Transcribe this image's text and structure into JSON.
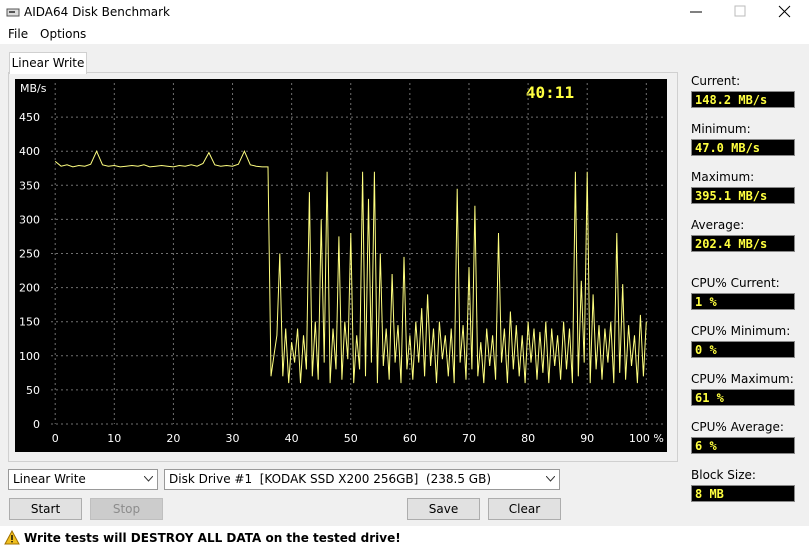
{
  "window": {
    "title": "AIDA64 Disk Benchmark"
  },
  "menu": [
    "File",
    "Options"
  ],
  "tab": "Linear Write",
  "chart": {
    "type": "line",
    "y_label": "MB/s",
    "timer": "40:11",
    "color": "#ffff80",
    "grid": true,
    "xlim": [
      -6.8,
      103.5
    ],
    "ylim": [
      0,
      500
    ],
    "xticks": [
      0,
      10,
      20,
      30,
      40,
      50,
      60,
      70,
      80,
      90,
      {
        "value": 100,
        "label": "100 %"
      }
    ],
    "yticks": [
      0,
      50,
      100,
      150,
      200,
      250,
      300,
      350,
      400,
      450
    ],
    "x": [
      0,
      1,
      2,
      3,
      4,
      5,
      6,
      7,
      8,
      9,
      10,
      11,
      12,
      13,
      14,
      15,
      16,
      17,
      18,
      19,
      20,
      21,
      22,
      23,
      24,
      25,
      26,
      27,
      28,
      29,
      30,
      31,
      32,
      33,
      34,
      35,
      36,
      36.5,
      37,
      37.5,
      38,
      38.5,
      39,
      39.5,
      40,
      40.5,
      41,
      41.5,
      42,
      42.5,
      43,
      43.5,
      44,
      44.5,
      45,
      45.5,
      46,
      46.5,
      47,
      47.5,
      48,
      48.5,
      49,
      49.5,
      50,
      50.5,
      51,
      51.5,
      52,
      52.5,
      53,
      53.5,
      54,
      54.5,
      55,
      55.5,
      56,
      56.5,
      57,
      57.5,
      58,
      58.5,
      59,
      59.5,
      60,
      60.5,
      61,
      61.5,
      62,
      62.5,
      63,
      63.5,
      64,
      64.5,
      65,
      65.5,
      66,
      66.5,
      67,
      67.5,
      68,
      68.5,
      69,
      69.5,
      70,
      70.5,
      71,
      71.5,
      72,
      72.5,
      73,
      73.5,
      74,
      74.5,
      75,
      75.5,
      76,
      76.5,
      77,
      77.5,
      78,
      78.5,
      79,
      79.5,
      80,
      80.5,
      81,
      81.5,
      82,
      82.5,
      83,
      83.5,
      84,
      84.5,
      85,
      85.5,
      86,
      86.5,
      87,
      87.5,
      88,
      88.5,
      89,
      89.5,
      90,
      90.5,
      91,
      91.5,
      92,
      92.5,
      93,
      93.5,
      94,
      94.5,
      95,
      95.5,
      96,
      96.5,
      97,
      97.5,
      98,
      98.5,
      99,
      99.5,
      100
    ],
    "values": [
      385,
      378,
      380,
      377,
      379,
      378,
      381,
      400,
      380,
      378,
      379,
      377,
      378,
      379,
      378,
      380,
      377,
      378,
      379,
      378,
      377,
      379,
      378,
      380,
      378,
      382,
      398,
      380,
      378,
      379,
      378,
      381,
      400,
      380,
      378,
      377,
      377,
      70,
      100,
      130,
      250,
      70,
      140,
      60,
      120,
      90,
      140,
      60,
      130,
      80,
      340,
      70,
      150,
      65,
      300,
      90,
      370,
      60,
      140,
      80,
      275,
      65,
      150,
      95,
      280,
      60,
      130,
      80,
      370,
      70,
      330,
      90,
      370,
      60,
      250,
      85,
      140,
      65,
      220,
      90,
      145,
      60,
      245,
      80,
      130,
      65,
      150,
      90,
      170,
      70,
      190,
      85,
      140,
      60,
      150,
      95,
      130,
      70,
      140,
      60,
      345,
      90,
      145,
      65,
      230,
      80,
      320,
      70,
      120,
      60,
      140,
      85,
      130,
      65,
      280,
      90,
      140,
      60,
      165,
      80,
      145,
      70,
      130,
      60,
      150,
      90,
      140,
      65,
      135,
      75,
      150,
      60,
      140,
      85,
      130,
      65,
      150,
      80,
      140,
      60,
      370,
      70,
      210,
      90,
      370,
      60,
      190,
      80,
      145,
      65,
      140,
      90,
      150,
      60,
      280,
      75,
      205,
      65,
      145,
      85,
      130,
      60,
      160,
      70,
      150
    ]
  },
  "stats": [
    {
      "label": "Current:",
      "value": "148.2 MB/s"
    },
    {
      "label": "Minimum:",
      "value": "47.0 MB/s"
    },
    {
      "label": "Maximum:",
      "value": "395.1 MB/s"
    },
    {
      "label": "Average:",
      "value": "202.4 MB/s"
    },
    {
      "label": "CPU% Current:",
      "value": "1 %"
    },
    {
      "label": "CPU% Minimum:",
      "value": "0 %"
    },
    {
      "label": "CPU% Maximum:",
      "value": "61 %"
    },
    {
      "label": "CPU% Average:",
      "value": "6 %"
    },
    {
      "label": "Block Size:",
      "value": "8 MB"
    }
  ],
  "controls": {
    "mode": "Linear Write",
    "drive": "Disk Drive #1  [KODAK SSD X200 256GB]  (238.5 GB)",
    "buttons": [
      "Start",
      "Stop",
      "Save",
      "Clear"
    ]
  },
  "warning": "Write tests will DESTROY ALL DATA on the tested drive!"
}
